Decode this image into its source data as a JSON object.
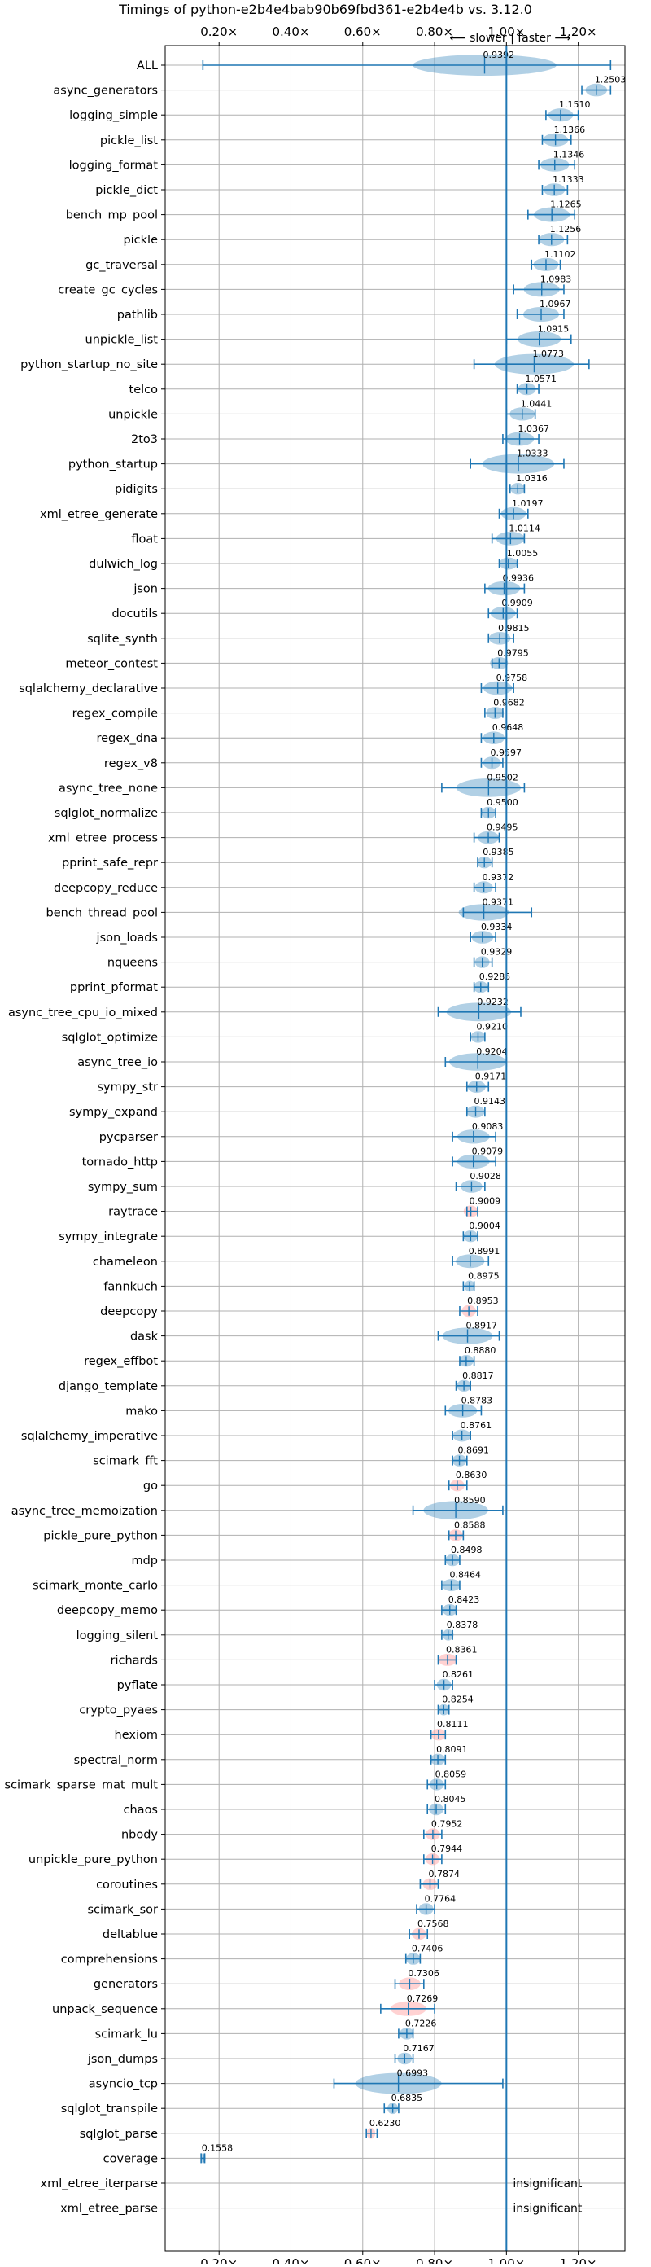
{
  "chart_data": {
    "type": "violin",
    "title": "Timings of python-e2b4e4bab90b69fbd361-e2b4e4b vs. 3.12.0",
    "direction_label": "⟵ slower | faster ⟶",
    "xlim": [
      0.05,
      1.33
    ],
    "xticks": [
      0.2,
      0.4,
      0.6,
      0.8,
      1.0,
      1.2
    ],
    "xtick_labels": [
      "0.20×",
      "0.40×",
      "0.60×",
      "0.80×",
      "1.00×",
      "1.20×"
    ],
    "reference_line": 1.0,
    "grid": true,
    "colors": {
      "faster": "#1f77b4",
      "slower": "#ff7f7f",
      "line": "#1f77b4"
    },
    "insignificant_label": "insignificant",
    "benchmarks": [
      {
        "name": "ALL",
        "mean": 0.9392,
        "min": 0.155,
        "max": 1.29,
        "spread": 0.2,
        "slower": false
      },
      {
        "name": "async_generators",
        "mean": 1.2503,
        "min": 1.21,
        "max": 1.29,
        "spread": 0.03,
        "slower": false
      },
      {
        "name": "logging_simple",
        "mean": 1.151,
        "min": 1.11,
        "max": 1.2,
        "spread": 0.035,
        "slower": false
      },
      {
        "name": "pickle_list",
        "mean": 1.1366,
        "min": 1.1,
        "max": 1.18,
        "spread": 0.035,
        "slower": false
      },
      {
        "name": "logging_format",
        "mean": 1.1346,
        "min": 1.09,
        "max": 1.19,
        "spread": 0.04,
        "slower": false
      },
      {
        "name": "pickle_dict",
        "mean": 1.1333,
        "min": 1.1,
        "max": 1.17,
        "spread": 0.03,
        "slower": false
      },
      {
        "name": "bench_mp_pool",
        "mean": 1.1265,
        "min": 1.06,
        "max": 1.19,
        "spread": 0.05,
        "slower": false
      },
      {
        "name": "pickle",
        "mean": 1.1256,
        "min": 1.09,
        "max": 1.17,
        "spread": 0.035,
        "slower": false
      },
      {
        "name": "gc_traversal",
        "mean": 1.1102,
        "min": 1.07,
        "max": 1.15,
        "spread": 0.035,
        "slower": false
      },
      {
        "name": "create_gc_cycles",
        "mean": 1.0983,
        "min": 1.02,
        "max": 1.16,
        "spread": 0.05,
        "slower": false
      },
      {
        "name": "pathlib",
        "mean": 1.0967,
        "min": 1.03,
        "max": 1.16,
        "spread": 0.05,
        "slower": false
      },
      {
        "name": "unpickle_list",
        "mean": 1.0915,
        "min": 1.0,
        "max": 1.18,
        "spread": 0.06,
        "slower": false
      },
      {
        "name": "python_startup_no_site",
        "mean": 1.0773,
        "min": 0.91,
        "max": 1.23,
        "spread": 0.11,
        "slower": false
      },
      {
        "name": "telco",
        "mean": 1.0571,
        "min": 1.03,
        "max": 1.09,
        "spread": 0.025,
        "slower": false
      },
      {
        "name": "unpickle",
        "mean": 1.0441,
        "min": 1.0,
        "max": 1.08,
        "spread": 0.035,
        "slower": false
      },
      {
        "name": "2to3",
        "mean": 1.0367,
        "min": 0.99,
        "max": 1.09,
        "spread": 0.04,
        "slower": false
      },
      {
        "name": "python_startup",
        "mean": 1.0333,
        "min": 0.9,
        "max": 1.16,
        "spread": 0.1,
        "slower": false
      },
      {
        "name": "pidigits",
        "mean": 1.0316,
        "min": 1.01,
        "max": 1.05,
        "spread": 0.02,
        "slower": false
      },
      {
        "name": "xml_etree_generate",
        "mean": 1.0197,
        "min": 0.98,
        "max": 1.06,
        "spread": 0.035,
        "slower": false
      },
      {
        "name": "float",
        "mean": 1.0114,
        "min": 0.96,
        "max": 1.05,
        "spread": 0.04,
        "slower": false
      },
      {
        "name": "dulwich_log",
        "mean": 1.0055,
        "min": 0.98,
        "max": 1.03,
        "spread": 0.025,
        "slower": false
      },
      {
        "name": "json",
        "mean": 0.9936,
        "min": 0.94,
        "max": 1.05,
        "spread": 0.045,
        "slower": false
      },
      {
        "name": "docutils",
        "mean": 0.9909,
        "min": 0.95,
        "max": 1.03,
        "spread": 0.035,
        "slower": false
      },
      {
        "name": "sqlite_synth",
        "mean": 0.9815,
        "min": 0.95,
        "max": 1.02,
        "spread": 0.03,
        "slower": false
      },
      {
        "name": "meteor_contest",
        "mean": 0.9795,
        "min": 0.96,
        "max": 1.0,
        "spread": 0.025,
        "slower": false
      },
      {
        "name": "sqlalchemy_declarative",
        "mean": 0.9758,
        "min": 0.93,
        "max": 1.02,
        "spread": 0.04,
        "slower": false
      },
      {
        "name": "regex_compile",
        "mean": 0.9682,
        "min": 0.94,
        "max": 0.99,
        "spread": 0.025,
        "slower": false
      },
      {
        "name": "regex_dna",
        "mean": 0.9648,
        "min": 0.93,
        "max": 1.0,
        "spread": 0.03,
        "slower": false
      },
      {
        "name": "regex_v8",
        "mean": 0.9597,
        "min": 0.93,
        "max": 0.99,
        "spread": 0.025,
        "slower": false
      },
      {
        "name": "async_tree_none",
        "mean": 0.9502,
        "min": 0.82,
        "max": 1.05,
        "spread": 0.09,
        "slower": false
      },
      {
        "name": "sqlglot_normalize",
        "mean": 0.95,
        "min": 0.93,
        "max": 0.97,
        "spread": 0.02,
        "slower": false
      },
      {
        "name": "xml_etree_process",
        "mean": 0.9495,
        "min": 0.91,
        "max": 0.98,
        "spread": 0.03,
        "slower": false
      },
      {
        "name": "pprint_safe_repr",
        "mean": 0.9385,
        "min": 0.92,
        "max": 0.96,
        "spread": 0.02,
        "slower": false
      },
      {
        "name": "deepcopy_reduce",
        "mean": 0.9372,
        "min": 0.91,
        "max": 0.97,
        "spread": 0.025,
        "slower": false
      },
      {
        "name": "bench_thread_pool",
        "mean": 0.9371,
        "min": 0.88,
        "max": 1.07,
        "spread": 0.07,
        "slower": false
      },
      {
        "name": "json_loads",
        "mean": 0.9334,
        "min": 0.9,
        "max": 0.97,
        "spread": 0.03,
        "slower": false
      },
      {
        "name": "nqueens",
        "mean": 0.9329,
        "min": 0.91,
        "max": 0.96,
        "spread": 0.02,
        "slower": false
      },
      {
        "name": "pprint_pformat",
        "mean": 0.9285,
        "min": 0.91,
        "max": 0.95,
        "spread": 0.02,
        "slower": false
      },
      {
        "name": "async_tree_cpu_io_mixed",
        "mean": 0.9232,
        "min": 0.81,
        "max": 1.04,
        "spread": 0.09,
        "slower": false
      },
      {
        "name": "sqlglot_optimize",
        "mean": 0.921,
        "min": 0.9,
        "max": 0.94,
        "spread": 0.02,
        "slower": false
      },
      {
        "name": "async_tree_io",
        "mean": 0.9204,
        "min": 0.83,
        "max": 1.0,
        "spread": 0.08,
        "slower": false
      },
      {
        "name": "sympy_str",
        "mean": 0.9171,
        "min": 0.89,
        "max": 0.95,
        "spread": 0.025,
        "slower": false
      },
      {
        "name": "sympy_expand",
        "mean": 0.9143,
        "min": 0.89,
        "max": 0.94,
        "spread": 0.025,
        "slower": false
      },
      {
        "name": "pycparser",
        "mean": 0.9083,
        "min": 0.85,
        "max": 0.97,
        "spread": 0.045,
        "slower": false
      },
      {
        "name": "tornado_http",
        "mean": 0.9079,
        "min": 0.85,
        "max": 0.97,
        "spread": 0.045,
        "slower": false
      },
      {
        "name": "sympy_sum",
        "mean": 0.9028,
        "min": 0.86,
        "max": 0.94,
        "spread": 0.03,
        "slower": false
      },
      {
        "name": "raytrace",
        "mean": 0.9009,
        "min": 0.89,
        "max": 0.92,
        "spread": 0.02,
        "slower": true
      },
      {
        "name": "sympy_integrate",
        "mean": 0.9004,
        "min": 0.88,
        "max": 0.92,
        "spread": 0.02,
        "slower": false
      },
      {
        "name": "chameleon",
        "mean": 0.8991,
        "min": 0.85,
        "max": 0.95,
        "spread": 0.04,
        "slower": false
      },
      {
        "name": "fannkuch",
        "mean": 0.8975,
        "min": 0.88,
        "max": 0.91,
        "spread": 0.015,
        "slower": false
      },
      {
        "name": "deepcopy",
        "mean": 0.8953,
        "min": 0.87,
        "max": 0.92,
        "spread": 0.02,
        "slower": true
      },
      {
        "name": "dask",
        "mean": 0.8917,
        "min": 0.81,
        "max": 0.98,
        "spread": 0.07,
        "slower": false
      },
      {
        "name": "regex_effbot",
        "mean": 0.888,
        "min": 0.87,
        "max": 0.91,
        "spread": 0.02,
        "slower": false
      },
      {
        "name": "django_template",
        "mean": 0.8817,
        "min": 0.86,
        "max": 0.9,
        "spread": 0.02,
        "slower": false
      },
      {
        "name": "mako",
        "mean": 0.8783,
        "min": 0.83,
        "max": 0.93,
        "spread": 0.04,
        "slower": false
      },
      {
        "name": "sqlalchemy_imperative",
        "mean": 0.8761,
        "min": 0.85,
        "max": 0.9,
        "spread": 0.025,
        "slower": false
      },
      {
        "name": "scimark_fft",
        "mean": 0.8691,
        "min": 0.85,
        "max": 0.89,
        "spread": 0.02,
        "slower": false
      },
      {
        "name": "go",
        "mean": 0.863,
        "min": 0.84,
        "max": 0.89,
        "spread": 0.02,
        "slower": true
      },
      {
        "name": "async_tree_memoization",
        "mean": 0.859,
        "min": 0.74,
        "max": 0.99,
        "spread": 0.09,
        "slower": false
      },
      {
        "name": "pickle_pure_python",
        "mean": 0.8588,
        "min": 0.84,
        "max": 0.88,
        "spread": 0.02,
        "slower": true
      },
      {
        "name": "mdp",
        "mean": 0.8498,
        "min": 0.83,
        "max": 0.87,
        "spread": 0.02,
        "slower": false
      },
      {
        "name": "scimark_monte_carlo",
        "mean": 0.8464,
        "min": 0.82,
        "max": 0.87,
        "spread": 0.025,
        "slower": false
      },
      {
        "name": "deepcopy_memo",
        "mean": 0.8423,
        "min": 0.82,
        "max": 0.86,
        "spread": 0.02,
        "slower": false
      },
      {
        "name": "logging_silent",
        "mean": 0.8378,
        "min": 0.82,
        "max": 0.85,
        "spread": 0.015,
        "slower": false
      },
      {
        "name": "richards",
        "mean": 0.8361,
        "min": 0.81,
        "max": 0.86,
        "spread": 0.025,
        "slower": true
      },
      {
        "name": "pyflate",
        "mean": 0.8261,
        "min": 0.8,
        "max": 0.85,
        "spread": 0.02,
        "slower": false
      },
      {
        "name": "crypto_pyaes",
        "mean": 0.8254,
        "min": 0.81,
        "max": 0.84,
        "spread": 0.015,
        "slower": false
      },
      {
        "name": "hexiom",
        "mean": 0.8111,
        "min": 0.79,
        "max": 0.83,
        "spread": 0.02,
        "slower": true
      },
      {
        "name": "spectral_norm",
        "mean": 0.8091,
        "min": 0.79,
        "max": 0.83,
        "spread": 0.02,
        "slower": false
      },
      {
        "name": "scimark_sparse_mat_mult",
        "mean": 0.8059,
        "min": 0.78,
        "max": 0.83,
        "spread": 0.02,
        "slower": false
      },
      {
        "name": "chaos",
        "mean": 0.8045,
        "min": 0.78,
        "max": 0.83,
        "spread": 0.02,
        "slower": false
      },
      {
        "name": "nbody",
        "mean": 0.7952,
        "min": 0.77,
        "max": 0.82,
        "spread": 0.02,
        "slower": true
      },
      {
        "name": "unpickle_pure_python",
        "mean": 0.7944,
        "min": 0.77,
        "max": 0.82,
        "spread": 0.02,
        "slower": true
      },
      {
        "name": "coroutines",
        "mean": 0.7874,
        "min": 0.76,
        "max": 0.81,
        "spread": 0.02,
        "slower": true
      },
      {
        "name": "scimark_sor",
        "mean": 0.7764,
        "min": 0.75,
        "max": 0.8,
        "spread": 0.02,
        "slower": false
      },
      {
        "name": "deltablue",
        "mean": 0.7568,
        "min": 0.73,
        "max": 0.78,
        "spread": 0.02,
        "slower": true
      },
      {
        "name": "comprehensions",
        "mean": 0.7406,
        "min": 0.72,
        "max": 0.76,
        "spread": 0.02,
        "slower": false
      },
      {
        "name": "generators",
        "mean": 0.7306,
        "min": 0.69,
        "max": 0.77,
        "spread": 0.03,
        "slower": true
      },
      {
        "name": "unpack_sequence",
        "mean": 0.7269,
        "min": 0.65,
        "max": 0.8,
        "spread": 0.05,
        "slower": true
      },
      {
        "name": "scimark_lu",
        "mean": 0.7226,
        "min": 0.7,
        "max": 0.74,
        "spread": 0.02,
        "slower": false
      },
      {
        "name": "json_dumps",
        "mean": 0.7167,
        "min": 0.69,
        "max": 0.74,
        "spread": 0.02,
        "slower": false
      },
      {
        "name": "asyncio_tcp",
        "mean": 0.6993,
        "min": 0.52,
        "max": 0.99,
        "spread": 0.12,
        "slower": false
      },
      {
        "name": "sqlglot_transpile",
        "mean": 0.6835,
        "min": 0.66,
        "max": 0.7,
        "spread": 0.015,
        "slower": false
      },
      {
        "name": "sqlglot_parse",
        "mean": 0.623,
        "min": 0.61,
        "max": 0.64,
        "spread": 0.012,
        "slower": true
      },
      {
        "name": "coverage",
        "mean": 0.1558,
        "min": 0.15,
        "max": 0.16,
        "spread": 0.005,
        "slower": false
      },
      {
        "name": "xml_etree_iterparse",
        "mean": null,
        "insignificant": true
      },
      {
        "name": "xml_etree_parse",
        "mean": null,
        "insignificant": true
      }
    ]
  }
}
